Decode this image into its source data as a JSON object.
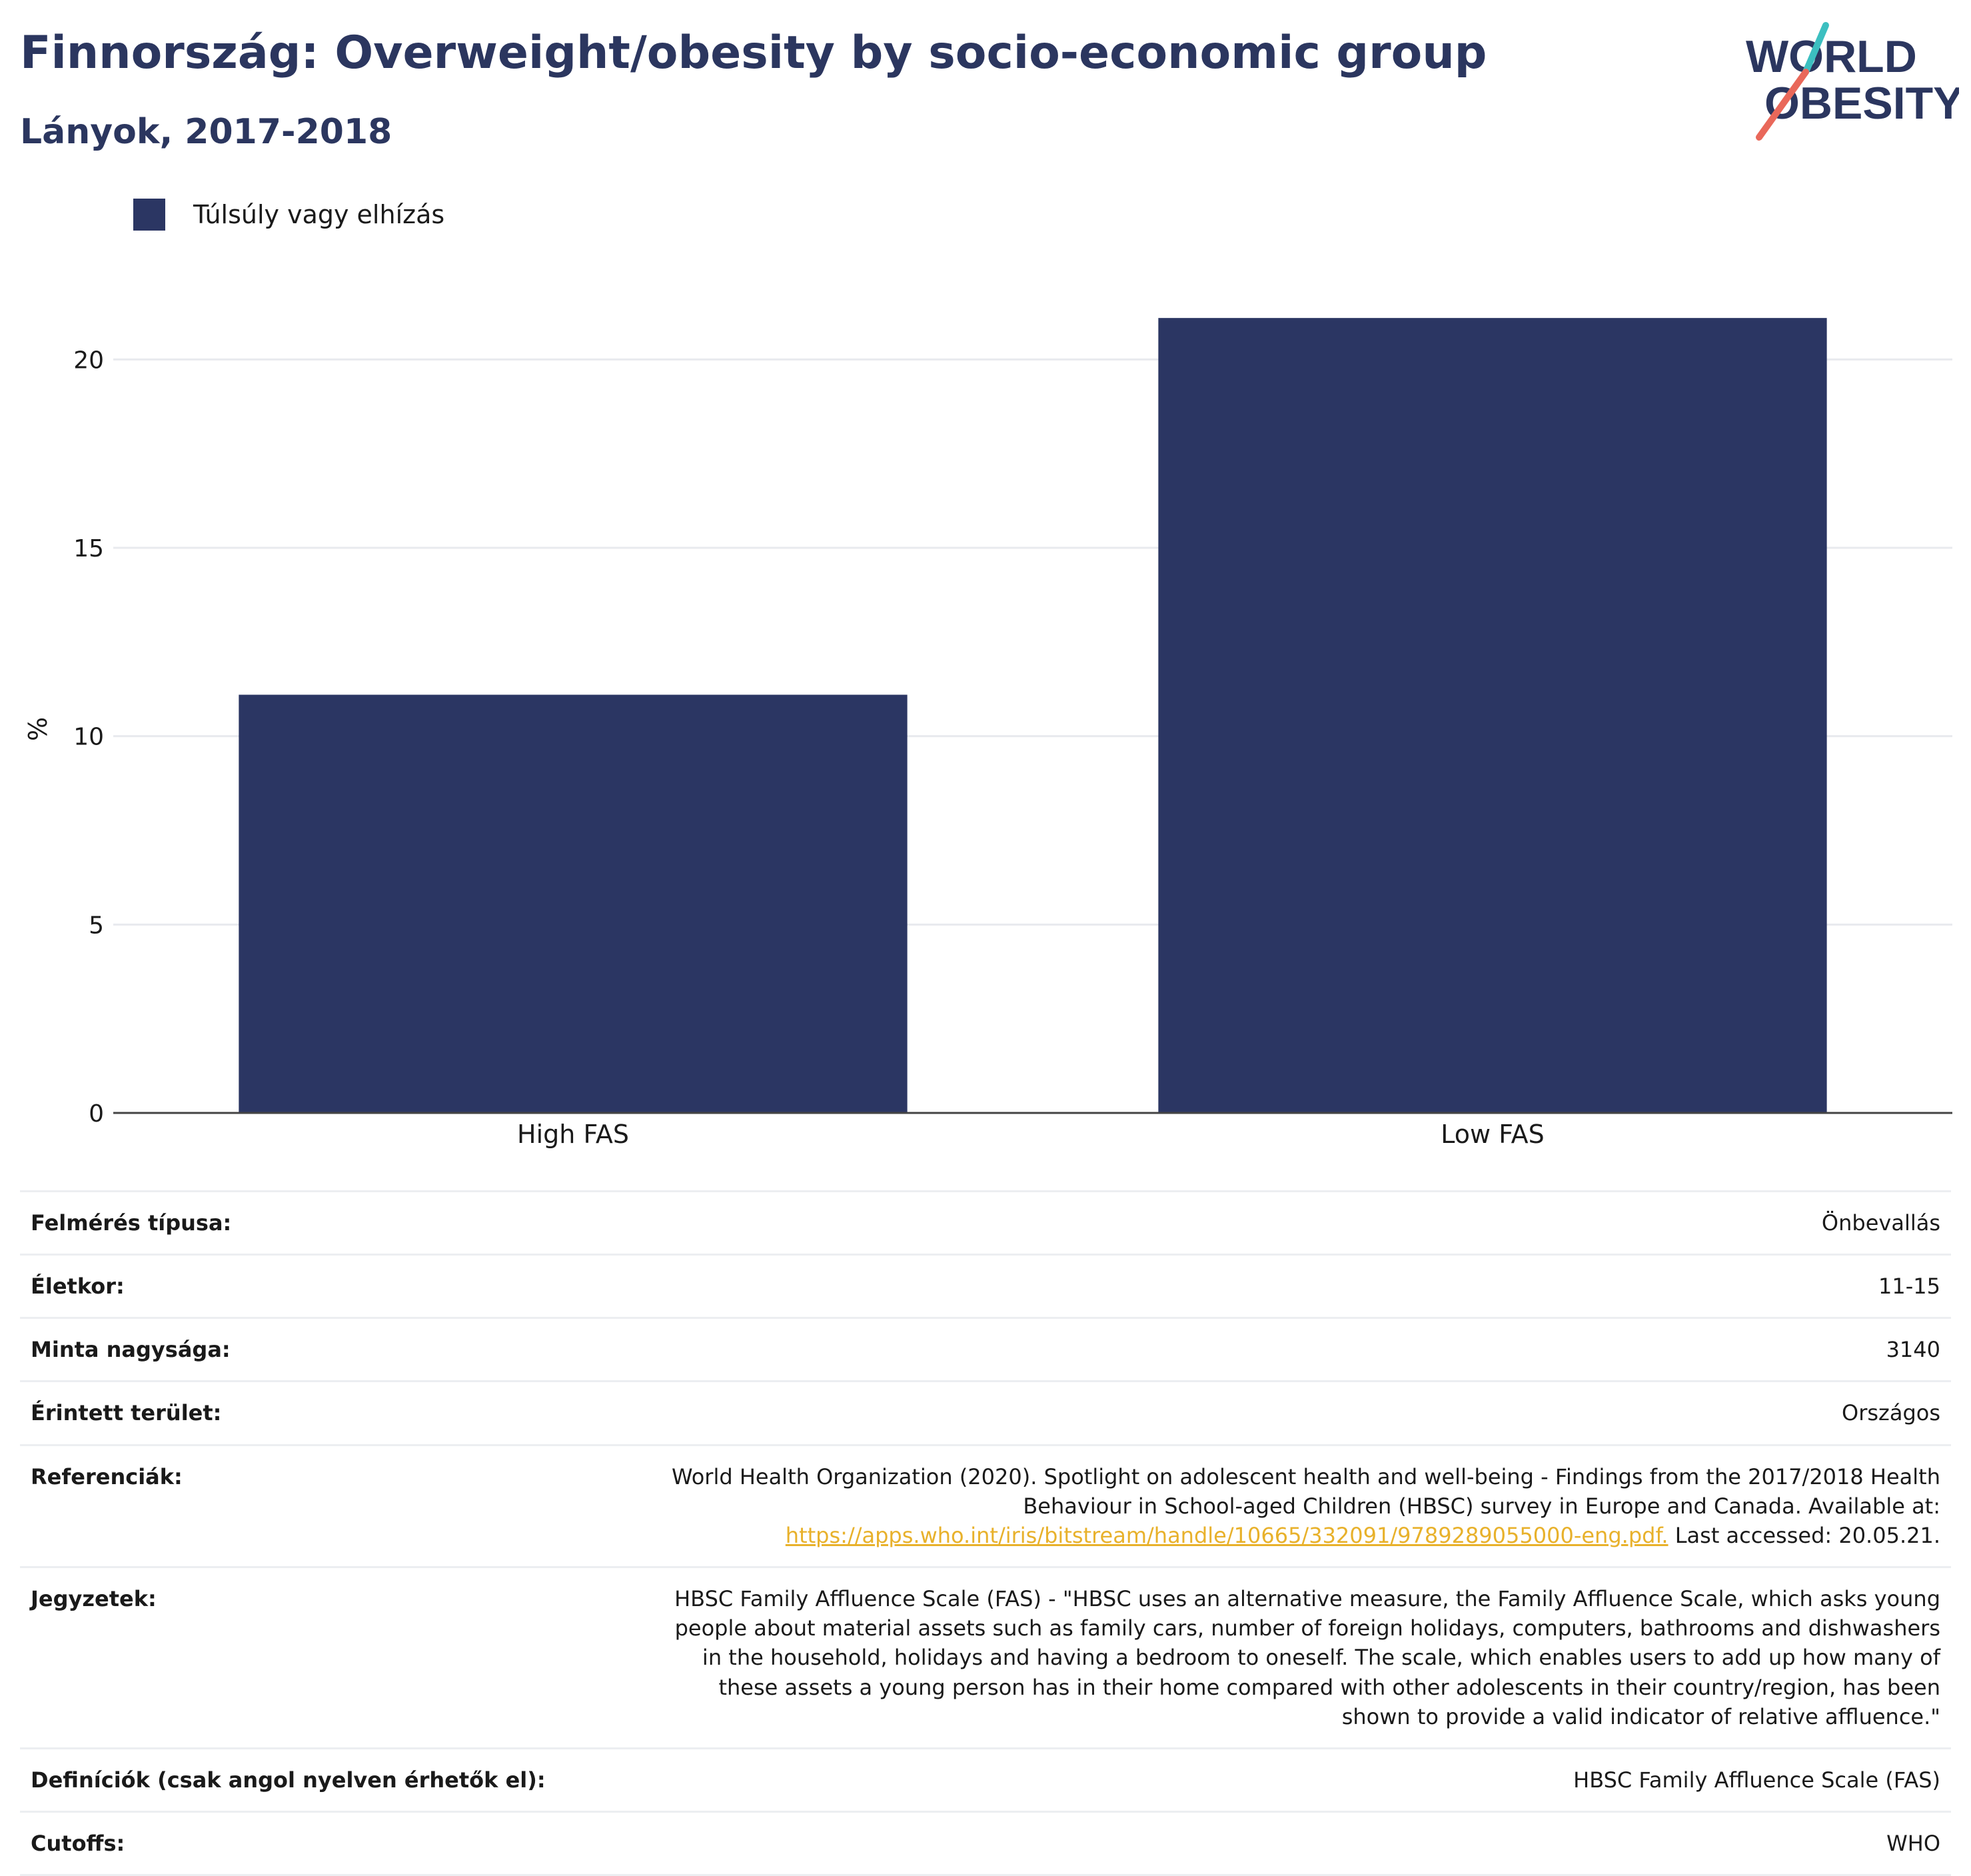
{
  "header": {
    "title": "Finnország: Overweight/obesity by socio-economic group",
    "subtitle": "Lányok, 2017-2018"
  },
  "logo": {
    "line1": "WORLD",
    "line2": "OBESITY",
    "colors": {
      "navy": "#2b365f",
      "teal": "#3cbfc0",
      "coral": "#e9685a"
    }
  },
  "legend": {
    "label": "Túlsúly vagy elhízás",
    "color": "#2b3663"
  },
  "chart_data": {
    "type": "bar",
    "categories": [
      "High FAS",
      "Low FAS"
    ],
    "series": [
      {
        "name": "Túlsúly vagy elhízás",
        "values": [
          11.1,
          21.1
        ],
        "color": "#2b3663"
      }
    ],
    "ylabel": "%",
    "xlabel": "",
    "ylim": [
      0,
      22.5
    ],
    "yticks": [
      0,
      5,
      10,
      15,
      20
    ],
    "grid": true,
    "legend_position": "top-left"
  },
  "info": [
    {
      "key": "Felmérés típusa:",
      "value": "Önbevallás"
    },
    {
      "key": "Életkor:",
      "value": "11-15"
    },
    {
      "key": "Minta nagysága:",
      "value": "3140"
    },
    {
      "key": "Érintett terület:",
      "value": "Országos"
    },
    {
      "key": "Referenciák:",
      "value_pre": "World Health Organization (2020). Spotlight on adolescent health and well-being - Findings from the 2017/2018 Health Behaviour in School-aged Children (HBSC) survey in Europe and Canada. Available at:",
      "link": "https://apps.who.int/iris/bitstream/handle/10665/332091/9789289055000-eng.pdf.",
      "value_post": "Last accessed: 20.05.21."
    },
    {
      "key": "Jegyzetek:",
      "value": "HBSC Family Affluence Scale (FAS) - \"HBSC uses an alternative measure, the Family Affluence Scale, which asks young people about material assets such as family cars, number of foreign holidays, computers, bathrooms and dishwashers in the household, holidays and having a bedroom to oneself. The scale, which enables users to add up how many of these assets a young person has in their home compared with other adolescents in their country/region, has been shown to provide a valid indicator of relative affluence.\""
    },
    {
      "key": "Definíciók (csak angol nyelven érhetők el):",
      "value": "HBSC Family Affluence Scale (FAS)"
    },
    {
      "key": "Cutoffs:",
      "value": "WHO"
    }
  ]
}
